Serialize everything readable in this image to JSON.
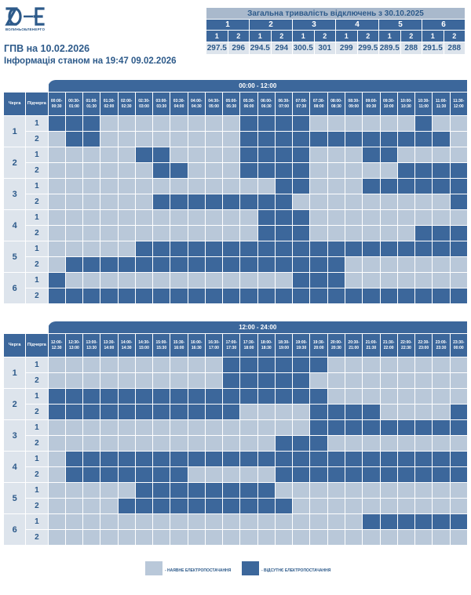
{
  "logo": {
    "text": "ВОЛИНЬОБЛЕНЕРГО"
  },
  "title": "ГПВ на 10.02.2026",
  "subtitle": "Інформація станом на 19:47 09.02.2026",
  "summary": {
    "title": "Загальна тривалість відключень з 30.10.2025",
    "queues": [
      "1",
      "2",
      "3",
      "4",
      "5",
      "6"
    ],
    "subqueues": [
      "1",
      "2"
    ],
    "values": [
      [
        "297.5",
        "296"
      ],
      [
        "294.5",
        "294"
      ],
      [
        "300.5",
        "301"
      ],
      [
        "299",
        "299.5"
      ],
      [
        "289.5",
        "288"
      ],
      [
        "291.5",
        "288"
      ]
    ]
  },
  "schedule": {
    "col_queue": "Черга",
    "col_sub": "Підчерга",
    "queues": [
      "1",
      "2",
      "3",
      "4",
      "5",
      "6"
    ],
    "subqueues": [
      "1",
      "2"
    ],
    "periods": [
      {
        "label": "00:00 - 12:00",
        "slots": [
          "00:00-00:30",
          "00:30-01:00",
          "01:00-01:30",
          "01:30-02:00",
          "02:00-02:30",
          "02:30-03:00",
          "03:00-03:30",
          "03:30-04:00",
          "04:00-04:30",
          "04:30-05:00",
          "05:00-05:30",
          "05:30-06:00",
          "06:00-06:30",
          "06:30-07:00",
          "07:00-07:30",
          "07:30-08:00",
          "08:00-08:30",
          "08:30-09:00",
          "09:00-09:30",
          "09:30-10:00",
          "10:00-10:30",
          "10:30-11:00",
          "11:00-11:30",
          "11:30-12:00"
        ],
        "rows": [
          "111000000001111000000100",
          "011000000001111111111110",
          "000001100001111000110000",
          "000000110001111000001111",
          "000000000000011000111111",
          "000000111111110000000001",
          "000000000000111000000000",
          "000000000000111000000111",
          "000001111111111111111111",
          "011111111111111110000000",
          "100000000000001110000000",
          "111111111111111111111111"
        ]
      },
      {
        "label": "12:00 - 24:00",
        "slots": [
          "12:00-12:30",
          "12:30-13:00",
          "13:00-13:30",
          "13:30-14:00",
          "14:00-14:30",
          "14:30-15:00",
          "15:00-15:30",
          "15:30-16:00",
          "16:00-16:30",
          "16:30-17:00",
          "17:00-17:30",
          "17:30-18:00",
          "18:00-18:30",
          "18:30-19:00",
          "19:00-19:30",
          "19:30-20:00",
          "20:00-20:30",
          "20:30-21:00",
          "21:00-21:30",
          "21:30-22:00",
          "22:00-22:30",
          "22:30-23:00",
          "23:00-23:30",
          "23:30-00:00"
        ],
        "rows": [
          "000000000011111100000000",
          "000000000011111000000000",
          "111111111111111100000000",
          "111111111110000111100001",
          "000000000000000111111111",
          "000000000000011100000000",
          "011111111111111111111111",
          "011111110000011111111111",
          "000001111111100000000000",
          "000011111111110000000000",
          "000000000000000000111111",
          "000000000000000000000000"
        ]
      }
    ]
  },
  "legend": {
    "on_label": "- НАЯВНЕ ЕЛЕКТРОПОСТАЧАННЯ",
    "off_label": "- ВІДСУТНЄ ЕЛЕКТРОПОСТАЧАННЯ"
  },
  "colors": {
    "on": "#b9c8d9",
    "off": "#3c679b",
    "brand": "#2d5a8a"
  }
}
